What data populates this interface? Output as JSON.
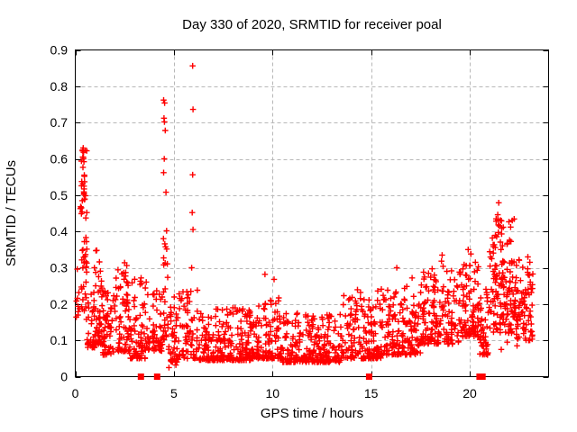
{
  "chart_data": {
    "type": "scatter",
    "title": "Day 330 of 2020, SRMTID for receiver poal",
    "xlabel": "GPS time / hours",
    "ylabel": "SRMTID / TECUs",
    "xlim": [
      0,
      24
    ],
    "ylim": [
      0,
      0.9
    ],
    "xticks": {
      "values": [
        0,
        5,
        10,
        15,
        20
      ],
      "labels": [
        "0",
        "5",
        "10",
        "15",
        "20"
      ]
    },
    "yticks": {
      "values": [
        0,
        0.1,
        0.2,
        0.3,
        0.4,
        0.5,
        0.6,
        0.7,
        0.8,
        0.9
      ],
      "labels": [
        "0",
        "0.1",
        "0.2",
        "0.3",
        "0.4",
        "0.5",
        "0.6",
        "0.7",
        "0.8",
        "0.9"
      ]
    },
    "grid": true,
    "legend": "none",
    "marker": "plus",
    "colors": {
      "marker": "#ff0000",
      "grid": "#b8b8b8",
      "axis": "#000000",
      "background": "#ffffff",
      "text": "#000000"
    },
    "series_envelope": {
      "name": "SRMTID scatter density envelope (hour_start, hour_end, n_points, value_min, value_max, skew_exponent)",
      "seed": 330,
      "segments": [
        [
          0.02,
          0.25,
          8,
          0.15,
          0.3,
          1.2
        ],
        [
          0.25,
          0.6,
          26,
          0.44,
          0.63,
          1.0
        ],
        [
          0.25,
          0.6,
          22,
          0.28,
          0.5,
          1.1
        ],
        [
          0.3,
          0.6,
          12,
          0.15,
          0.28,
          1.0
        ],
        [
          0.6,
          1.0,
          35,
          0.08,
          0.24,
          1.9
        ],
        [
          1.0,
          1.35,
          45,
          0.09,
          0.35,
          1.8
        ],
        [
          1.35,
          2.05,
          60,
          0.06,
          0.24,
          1.9
        ],
        [
          2.05,
          2.75,
          70,
          0.07,
          0.32,
          2.0
        ],
        [
          2.75,
          3.65,
          75,
          0.05,
          0.28,
          2.0
        ],
        [
          3.65,
          4.45,
          60,
          0.07,
          0.24,
          1.8
        ],
        [
          4.45,
          4.7,
          22,
          0.1,
          0.36,
          1.4
        ],
        [
          4.7,
          5.25,
          45,
          0.04,
          0.22,
          1.8
        ],
        [
          5.25,
          6.25,
          70,
          0.05,
          0.24,
          2.0
        ],
        [
          6.25,
          9.0,
          230,
          0.045,
          0.19,
          2.2
        ],
        [
          9.0,
          10.5,
          125,
          0.05,
          0.22,
          2.2
        ],
        [
          10.5,
          13.5,
          250,
          0.04,
          0.175,
          2.2
        ],
        [
          13.5,
          15.5,
          165,
          0.05,
          0.24,
          2.1
        ],
        [
          15.5,
          17.5,
          165,
          0.06,
          0.25,
          1.9
        ],
        [
          17.5,
          19.5,
          165,
          0.09,
          0.3,
          1.7
        ],
        [
          19.5,
          20.45,
          90,
          0.11,
          0.32,
          1.6
        ],
        [
          20.45,
          21.0,
          45,
          0.06,
          0.25,
          1.6
        ],
        [
          21.0,
          22.3,
          150,
          0.12,
          0.44,
          1.4
        ],
        [
          22.3,
          23.2,
          85,
          0.1,
          0.33,
          1.3
        ]
      ]
    },
    "outlier_points": [
      [
        0.4,
        0.63
      ],
      [
        0.42,
        0.618
      ],
      [
        0.38,
        0.605
      ],
      [
        0.44,
        0.592
      ],
      [
        0.1,
        0.296
      ],
      [
        0.97,
        0.3
      ],
      [
        4.48,
        0.762
      ],
      [
        4.53,
        0.754
      ],
      [
        4.5,
        0.712
      ],
      [
        4.52,
        0.702
      ],
      [
        4.56,
        0.678
      ],
      [
        4.51,
        0.6
      ],
      [
        4.48,
        0.562
      ],
      [
        4.6,
        0.508
      ],
      [
        4.63,
        0.402
      ],
      [
        4.47,
        0.38
      ],
      [
        4.54,
        0.366
      ],
      [
        5.95,
        0.856
      ],
      [
        5.97,
        0.736
      ],
      [
        5.95,
        0.556
      ],
      [
        5.93,
        0.452
      ],
      [
        5.97,
        0.405
      ],
      [
        5.9,
        0.3
      ],
      [
        9.62,
        0.282
      ],
      [
        10.08,
        0.268
      ],
      [
        18.6,
        0.335
      ],
      [
        18.57,
        0.318
      ],
      [
        18.65,
        0.304
      ],
      [
        19.92,
        0.35
      ],
      [
        20.06,
        0.338
      ],
      [
        21.47,
        0.479
      ],
      [
        21.42,
        0.446
      ],
      [
        21.56,
        0.431
      ],
      [
        21.5,
        0.415
      ],
      [
        21.6,
        0.075
      ],
      [
        22.4,
        0.085
      ],
      [
        21.9,
        0.095
      ],
      [
        4.75,
        0.025
      ],
      [
        5.1,
        0.032
      ],
      [
        16.3,
        0.3
      ],
      [
        17.08,
        0.272
      ],
      [
        22.95,
        0.33
      ],
      [
        23.05,
        0.315
      ]
    ],
    "axis_event_markers": {
      "description": "red filled squares on the y=0 baseline",
      "marker": "filled-square",
      "y": 0,
      "x": [
        3.33,
        4.15,
        14.9,
        20.5,
        20.65
      ]
    }
  }
}
